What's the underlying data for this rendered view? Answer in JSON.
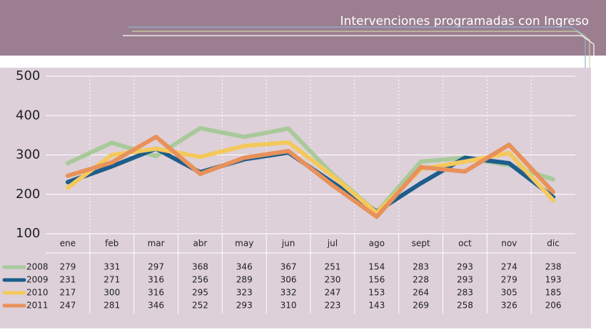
{
  "chart_data": {
    "type": "line",
    "title": "Intervenciones programadas con Ingreso",
    "categories": [
      "ene",
      "feb",
      "mar",
      "abr",
      "may",
      "jun",
      "jul",
      "ago",
      "sept",
      "oct",
      "nov",
      "dic"
    ],
    "series": [
      {
        "name": "2008",
        "color": "#a9c99b",
        "values": [
          279,
          331,
          297,
          368,
          346,
          367,
          251,
          154,
          283,
          293,
          274,
          238
        ]
      },
      {
        "name": "2009",
        "color": "#1d5d8c",
        "values": [
          231,
          271,
          316,
          256,
          289,
          306,
          230,
          156,
          228,
          293,
          279,
          193
        ]
      },
      {
        "name": "2010",
        "color": "#f4c95c",
        "values": [
          217,
          300,
          316,
          295,
          323,
          332,
          247,
          153,
          264,
          283,
          305,
          185
        ]
      },
      {
        "name": "2011",
        "color": "#e8915a",
        "values": [
          247,
          281,
          346,
          252,
          293,
          310,
          223,
          143,
          269,
          258,
          326,
          206
        ]
      }
    ],
    "ylim": [
      100,
      500
    ],
    "yticks": [
      100,
      200,
      300,
      400,
      500
    ],
    "grid": true
  }
}
